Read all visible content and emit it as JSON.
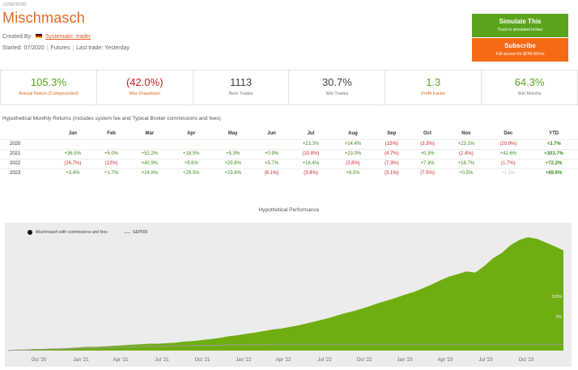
{
  "header": {
    "system_id": "(129875638)",
    "title": "Mischmasch",
    "created_by_label": "Created By:",
    "developer": "Systematic_trader",
    "started": "Started: 07/2020",
    "market": "Futures",
    "last_trade": "Last trade: Yesterday"
  },
  "actions": {
    "simulate_label": "Simulate This",
    "simulate_sub": "Track in simulated broker",
    "subscribe_label": "Subscribe",
    "subscribe_sub": "Full access for $249.00/mo"
  },
  "stats": [
    {
      "value": "105.3%",
      "label": "Annual Return (Compounded)",
      "color": "g"
    },
    {
      "value": "(42.0%)",
      "label": "Max Drawdown",
      "color": "r"
    },
    {
      "value": "1113",
      "label": "Num Trades",
      "color": "d"
    },
    {
      "value": "30.7%",
      "label": "Win Trades",
      "color": "d"
    },
    {
      "value": "1.3",
      "label": "Profit Factor",
      "color": "g"
    },
    {
      "value": "64.3%",
      "label": "Win Months",
      "color": "g"
    }
  ],
  "returns": {
    "label": "Hypothetical Monthly Returns (includes system fee and Typical Broker commissions and fees)",
    "headers": [
      "",
      "Jan",
      "Feb",
      "Mar",
      "Apr",
      "May",
      "Jun",
      "Jul",
      "Aug",
      "Sep",
      "Oct",
      "Nov",
      "Dec",
      "YTD"
    ],
    "rows": [
      [
        "2020",
        "",
        "",
        "",
        "",
        "",
        "",
        "+13.3%",
        "+14.4%",
        "(15%)",
        "(3.3%)",
        "+23.1%",
        "(20.9%)",
        "+3.7%"
      ],
      [
        "2021",
        "+36.5%",
        "+5.0%",
        "+52.2%",
        "+18.5%",
        "+5.3%",
        "+0.9%",
        "(10.8%)",
        "+23.0%",
        "(4.7%)",
        "+0.3%",
        "(2.4%)",
        "+42.6%",
        "+303.7%"
      ],
      [
        "2022",
        "(26.7%)",
        "(12%)",
        "+40.9%",
        "+9.6%",
        "+25.8%",
        "+5.7%",
        "+16.4%",
        "(3.8%)",
        "(7.3%)",
        "+7.3%",
        "+18.7%",
        "(1.7%)",
        "+72.2%"
      ],
      [
        "2023",
        "+3.4%",
        "+1.7%",
        "+14.8%",
        "+25.5%",
        "+23.8%",
        "(6.1%)",
        "(3.8%)",
        "+9.5%",
        "(3.1%)",
        "(7.5%)",
        "+0.5%",
        "+1.5%",
        "+69.6%"
      ]
    ]
  },
  "chart_data": {
    "type": "area",
    "title": "Hypothetical Performance",
    "series": [
      {
        "name": "Mischmasch with commissions and fees",
        "color": "#6fae12",
        "values": [
          0,
          1,
          2,
          3,
          3,
          4,
          4,
          5,
          6,
          7,
          7,
          8,
          9,
          10,
          11,
          12,
          13,
          13,
          14,
          15,
          17,
          18,
          20,
          22,
          24,
          27,
          29,
          32,
          34,
          37,
          40,
          42,
          45,
          48,
          52,
          56,
          60,
          65,
          70,
          74,
          79,
          84,
          90,
          95,
          100,
          106,
          111,
          118,
          125,
          133,
          140,
          145,
          150,
          148,
          160,
          175,
          185,
          200,
          210,
          215,
          212,
          205,
          198,
          190
        ]
      },
      {
        "name": "S&P500",
        "color": "#9a9a9a",
        "values": [
          0,
          1,
          1,
          2,
          2,
          3,
          3,
          4,
          4,
          5,
          5,
          6,
          6,
          7,
          7,
          8,
          8,
          8,
          9,
          9,
          9,
          10,
          10,
          10,
          10,
          11,
          11,
          11,
          11,
          11,
          12,
          12,
          12,
          12,
          12,
          12,
          12,
          12,
          12,
          12,
          12,
          12,
          12,
          12,
          12,
          12,
          12,
          12,
          12,
          12,
          12,
          12,
          12,
          12,
          12,
          12,
          12,
          12,
          12,
          12,
          12,
          12,
          12,
          12
        ]
      }
    ],
    "x_tick_labels": [
      "Oct '20",
      "Jan '21",
      "Apr '21",
      "Jul '21",
      "Oct '21",
      "Jan '22",
      "Apr '22",
      "Jul '22",
      "Oct '22",
      "Jan '23",
      "Apr '23",
      "Jul '23",
      "Oct '23"
    ],
    "y_tick_labels": [
      "100%",
      "0%"
    ],
    "legend": "top-left",
    "grid": false
  }
}
